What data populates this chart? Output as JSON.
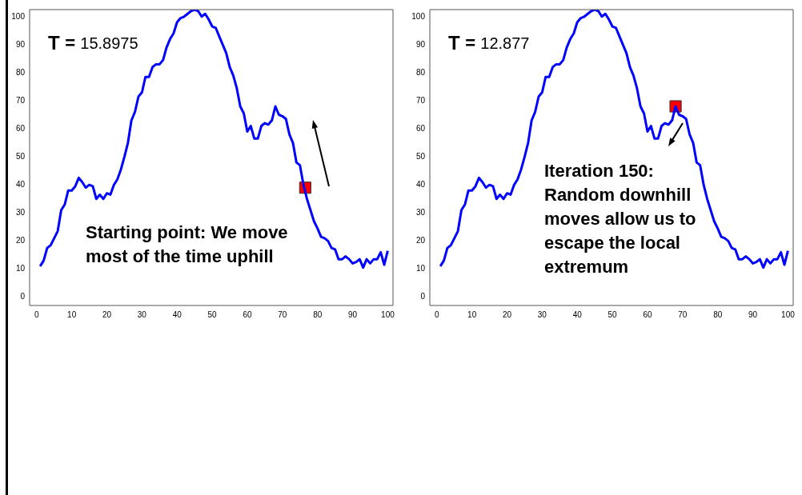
{
  "chart_data": [
    {
      "type": "line",
      "xlim": [
        -2,
        101.5
      ],
      "ylim": [
        -3,
        102.5
      ],
      "xticks": [
        0,
        10,
        20,
        30,
        40,
        50,
        60,
        70,
        80,
        90,
        100
      ],
      "yticks": [
        0,
        10,
        20,
        30,
        40,
        50,
        60,
        70,
        80,
        90,
        100
      ],
      "annotations": [
        "T = 15.8975",
        "Starting point: We move most of the time uphill"
      ],
      "x": [
        1,
        2,
        3,
        4,
        5,
        6,
        7,
        8,
        9,
        10,
        11,
        12,
        13,
        14,
        15,
        16,
        17,
        18,
        19,
        20,
        21,
        22,
        23,
        24,
        25,
        26,
        27,
        28,
        29,
        30,
        31,
        32,
        33,
        34,
        35,
        36,
        37,
        38,
        39,
        40,
        41,
        42,
        43,
        44,
        45,
        46,
        47,
        48,
        49,
        50,
        51,
        52,
        53,
        54,
        55,
        56,
        57,
        58,
        59,
        60,
        61,
        62,
        63,
        64,
        65,
        66,
        67,
        68,
        69,
        70,
        71,
        72,
        73,
        74,
        75,
        76,
        77,
        78,
        79,
        80,
        81,
        82,
        83,
        84,
        85,
        86,
        87,
        88,
        89,
        90,
        91,
        92,
        93,
        94,
        95,
        96,
        97,
        98,
        99,
        100
      ],
      "series": [
        {
          "type": "line",
          "color": "#0000ff",
          "marker": "none",
          "values": [
            11,
            13,
            17.5,
            18.5,
            21,
            23.5,
            31,
            33,
            38,
            38,
            39.5,
            42.5,
            41,
            39,
            40,
            39.5,
            35,
            36.5,
            35,
            37,
            36.5,
            40,
            42,
            45.5,
            50,
            55,
            63,
            66,
            71.5,
            73,
            78.5,
            78.5,
            82,
            83,
            83,
            84.5,
            89,
            92,
            94,
            98,
            99.5,
            100,
            101,
            102,
            102.5,
            102,
            100,
            101,
            99,
            96.5,
            96,
            93,
            90,
            87,
            82,
            79,
            74.5,
            68,
            65.5,
            59,
            61,
            56.5,
            56.5,
            61,
            62,
            61.5,
            63,
            68,
            65,
            64.5,
            63.5,
            58,
            55,
            48,
            47,
            40,
            35,
            31,
            27,
            24.5,
            21.5,
            21,
            20,
            17.5,
            17,
            13.5,
            13.5,
            14.5,
            13.5,
            12,
            12.5,
            13.5,
            10.5,
            13.5,
            12,
            13.5,
            13.5,
            16,
            11.5,
            16.5
          ]
        },
        {
          "type": "scatter",
          "color": "#ff0000",
          "marker": "square",
          "x": [
            76.5
          ],
          "values": [
            39
          ]
        }
      ]
    },
    {
      "type": "line",
      "xlim": [
        -2,
        101.5
      ],
      "ylim": [
        -3,
        102.5
      ],
      "xticks": [
        0,
        10,
        20,
        30,
        40,
        50,
        60,
        70,
        80,
        90,
        100
      ],
      "yticks": [
        0,
        10,
        20,
        30,
        40,
        50,
        60,
        70,
        80,
        90,
        100
      ],
      "annotations": [
        "T = 12.877",
        "Iteration 150: Random downhill moves allow us to escape the local extremum"
      ],
      "x": [
        1,
        2,
        3,
        4,
        5,
        6,
        7,
        8,
        9,
        10,
        11,
        12,
        13,
        14,
        15,
        16,
        17,
        18,
        19,
        20,
        21,
        22,
        23,
        24,
        25,
        26,
        27,
        28,
        29,
        30,
        31,
        32,
        33,
        34,
        35,
        36,
        37,
        38,
        39,
        40,
        41,
        42,
        43,
        44,
        45,
        46,
        47,
        48,
        49,
        50,
        51,
        52,
        53,
        54,
        55,
        56,
        57,
        58,
        59,
        60,
        61,
        62,
        63,
        64,
        65,
        66,
        67,
        68,
        69,
        70,
        71,
        72,
        73,
        74,
        75,
        76,
        77,
        78,
        79,
        80,
        81,
        82,
        83,
        84,
        85,
        86,
        87,
        88,
        89,
        90,
        91,
        92,
        93,
        94,
        95,
        96,
        97,
        98,
        99,
        100
      ],
      "series": [
        {
          "type": "line",
          "color": "#0000ff",
          "marker": "none",
          "values": [
            11,
            13,
            17.5,
            18.5,
            21,
            23.5,
            31,
            33,
            38,
            38,
            39.5,
            42.5,
            41,
            39,
            40,
            39.5,
            35,
            36.5,
            35,
            37,
            36.5,
            40,
            42,
            45.5,
            50,
            55,
            63,
            66,
            71.5,
            73,
            78.5,
            78.5,
            82,
            83,
            83,
            84.5,
            89,
            92,
            94,
            98,
            99.5,
            100,
            101,
            102,
            102.5,
            102,
            100,
            101,
            99,
            96.5,
            96,
            93,
            90,
            87,
            82,
            79,
            74.5,
            68,
            65.5,
            59,
            61,
            56.5,
            56.5,
            61,
            62,
            61.5,
            63,
            68,
            65,
            64.5,
            63.5,
            58,
            55,
            48,
            47,
            40,
            35,
            31,
            27,
            24.5,
            21.5,
            21,
            20,
            17.5,
            17,
            13.5,
            13.5,
            14.5,
            13.5,
            12,
            12.5,
            13.5,
            10.5,
            13.5,
            12,
            13.5,
            13.5,
            16,
            11.5,
            16.5
          ]
        },
        {
          "type": "scatter",
          "color": "#ff0000",
          "marker": "square",
          "x": [
            68
          ],
          "values": [
            68
          ]
        }
      ]
    }
  ]
}
